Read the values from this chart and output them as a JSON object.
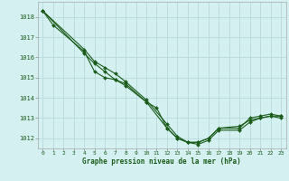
{
  "title": "Graphe pression niveau de la mer (hPa)",
  "background_color": "#d4f0f0",
  "grid_color": "#b8dada",
  "line_color": "#1a5c1a",
  "marker_color": "#1a5c1a",
  "x_ticks": [
    0,
    1,
    2,
    3,
    4,
    5,
    6,
    7,
    8,
    9,
    10,
    11,
    12,
    13,
    14,
    15,
    16,
    17,
    18,
    19,
    20,
    21,
    22,
    23
  ],
  "ylim": [
    1011.5,
    1018.75
  ],
  "yticks": [
    1012,
    1013,
    1014,
    1015,
    1016,
    1017,
    1018
  ],
  "series_sparse": [
    {
      "x": [
        0,
        1,
        4,
        5,
        6,
        7,
        8,
        10,
        11,
        12,
        13,
        14,
        15,
        16,
        17,
        19,
        20,
        21,
        22,
        23
      ],
      "y": [
        1018.3,
        1017.6,
        1016.3,
        1015.3,
        1015.0,
        1014.9,
        1014.7,
        1013.8,
        1013.5,
        1012.5,
        1012.0,
        1011.8,
        1011.8,
        1012.0,
        1012.5,
        1012.6,
        1012.9,
        1013.0,
        1013.1,
        1013.1
      ]
    },
    {
      "x": [
        0,
        4,
        5,
        6,
        7,
        8,
        10,
        12,
        13,
        14,
        15,
        16,
        17,
        19,
        20,
        21,
        22,
        23
      ],
      "y": [
        1018.3,
        1016.4,
        1015.8,
        1015.5,
        1015.2,
        1014.8,
        1013.9,
        1012.7,
        1012.1,
        1011.8,
        1011.8,
        1012.0,
        1012.5,
        1012.5,
        1013.0,
        1013.1,
        1013.2,
        1013.1
      ]
    },
    {
      "x": [
        0,
        4,
        5,
        6,
        7,
        8,
        10,
        12,
        13,
        14,
        15,
        16,
        17,
        19,
        20,
        21,
        22,
        23
      ],
      "y": [
        1018.3,
        1016.2,
        1015.7,
        1015.3,
        1014.9,
        1014.6,
        1013.8,
        1012.5,
        1012.0,
        1011.8,
        1011.7,
        1011.9,
        1012.4,
        1012.4,
        1012.8,
        1013.0,
        1013.1,
        1013.0
      ]
    }
  ]
}
